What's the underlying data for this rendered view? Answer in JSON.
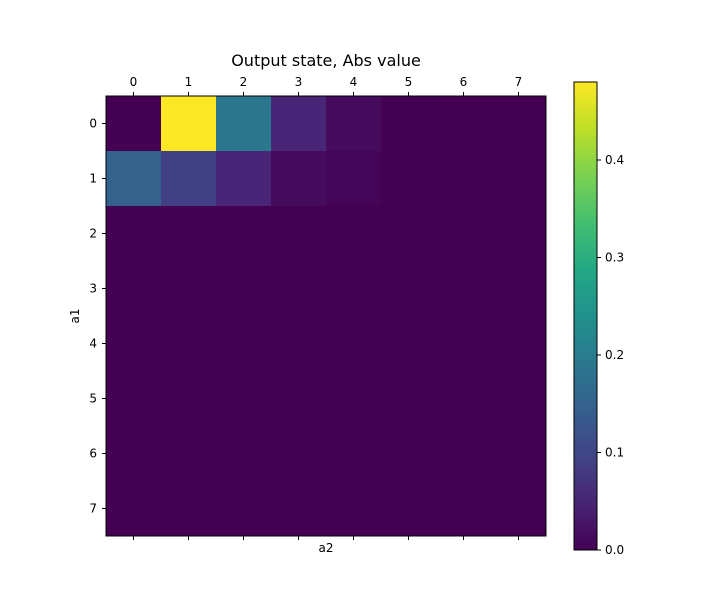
{
  "chart_data": {
    "type": "heatmap",
    "title": "Output state, Abs value",
    "xlabel": "a2",
    "ylabel": "a1",
    "x_ticks": [
      "0",
      "1",
      "2",
      "3",
      "4",
      "5",
      "6",
      "7"
    ],
    "y_ticks": [
      "0",
      "1",
      "2",
      "3",
      "4",
      "5",
      "6",
      "7"
    ],
    "values": [
      [
        0.0,
        0.48,
        0.19,
        0.05,
        0.015,
        0.002,
        0.0,
        0.0
      ],
      [
        0.15,
        0.09,
        0.05,
        0.015,
        0.004,
        0.001,
        0.0,
        0.0
      ],
      [
        0.0,
        0.0,
        0.0,
        0.0,
        0.0,
        0.0,
        0.0,
        0.0
      ],
      [
        0.0,
        0.0,
        0.0,
        0.0,
        0.0,
        0.0,
        0.0,
        0.0
      ],
      [
        0.0,
        0.0,
        0.0,
        0.0,
        0.0,
        0.0,
        0.0,
        0.0
      ],
      [
        0.0,
        0.0,
        0.0,
        0.0,
        0.0,
        0.0,
        0.0,
        0.0
      ],
      [
        0.0,
        0.0,
        0.0,
        0.0,
        0.0,
        0.0,
        0.0,
        0.0
      ],
      [
        0.0,
        0.0,
        0.0,
        0.0,
        0.0,
        0.0,
        0.0,
        0.0
      ]
    ],
    "colorbar": {
      "colormap": "viridis",
      "range": [
        0.0,
        0.48
      ],
      "ticks": [
        0.0,
        0.1,
        0.2,
        0.3,
        0.4
      ],
      "tick_labels": [
        "0.0",
        "0.1",
        "0.2",
        "0.3",
        "0.4"
      ]
    },
    "x_ticks_position": "top-and-bottom, labels top",
    "grid": false
  }
}
